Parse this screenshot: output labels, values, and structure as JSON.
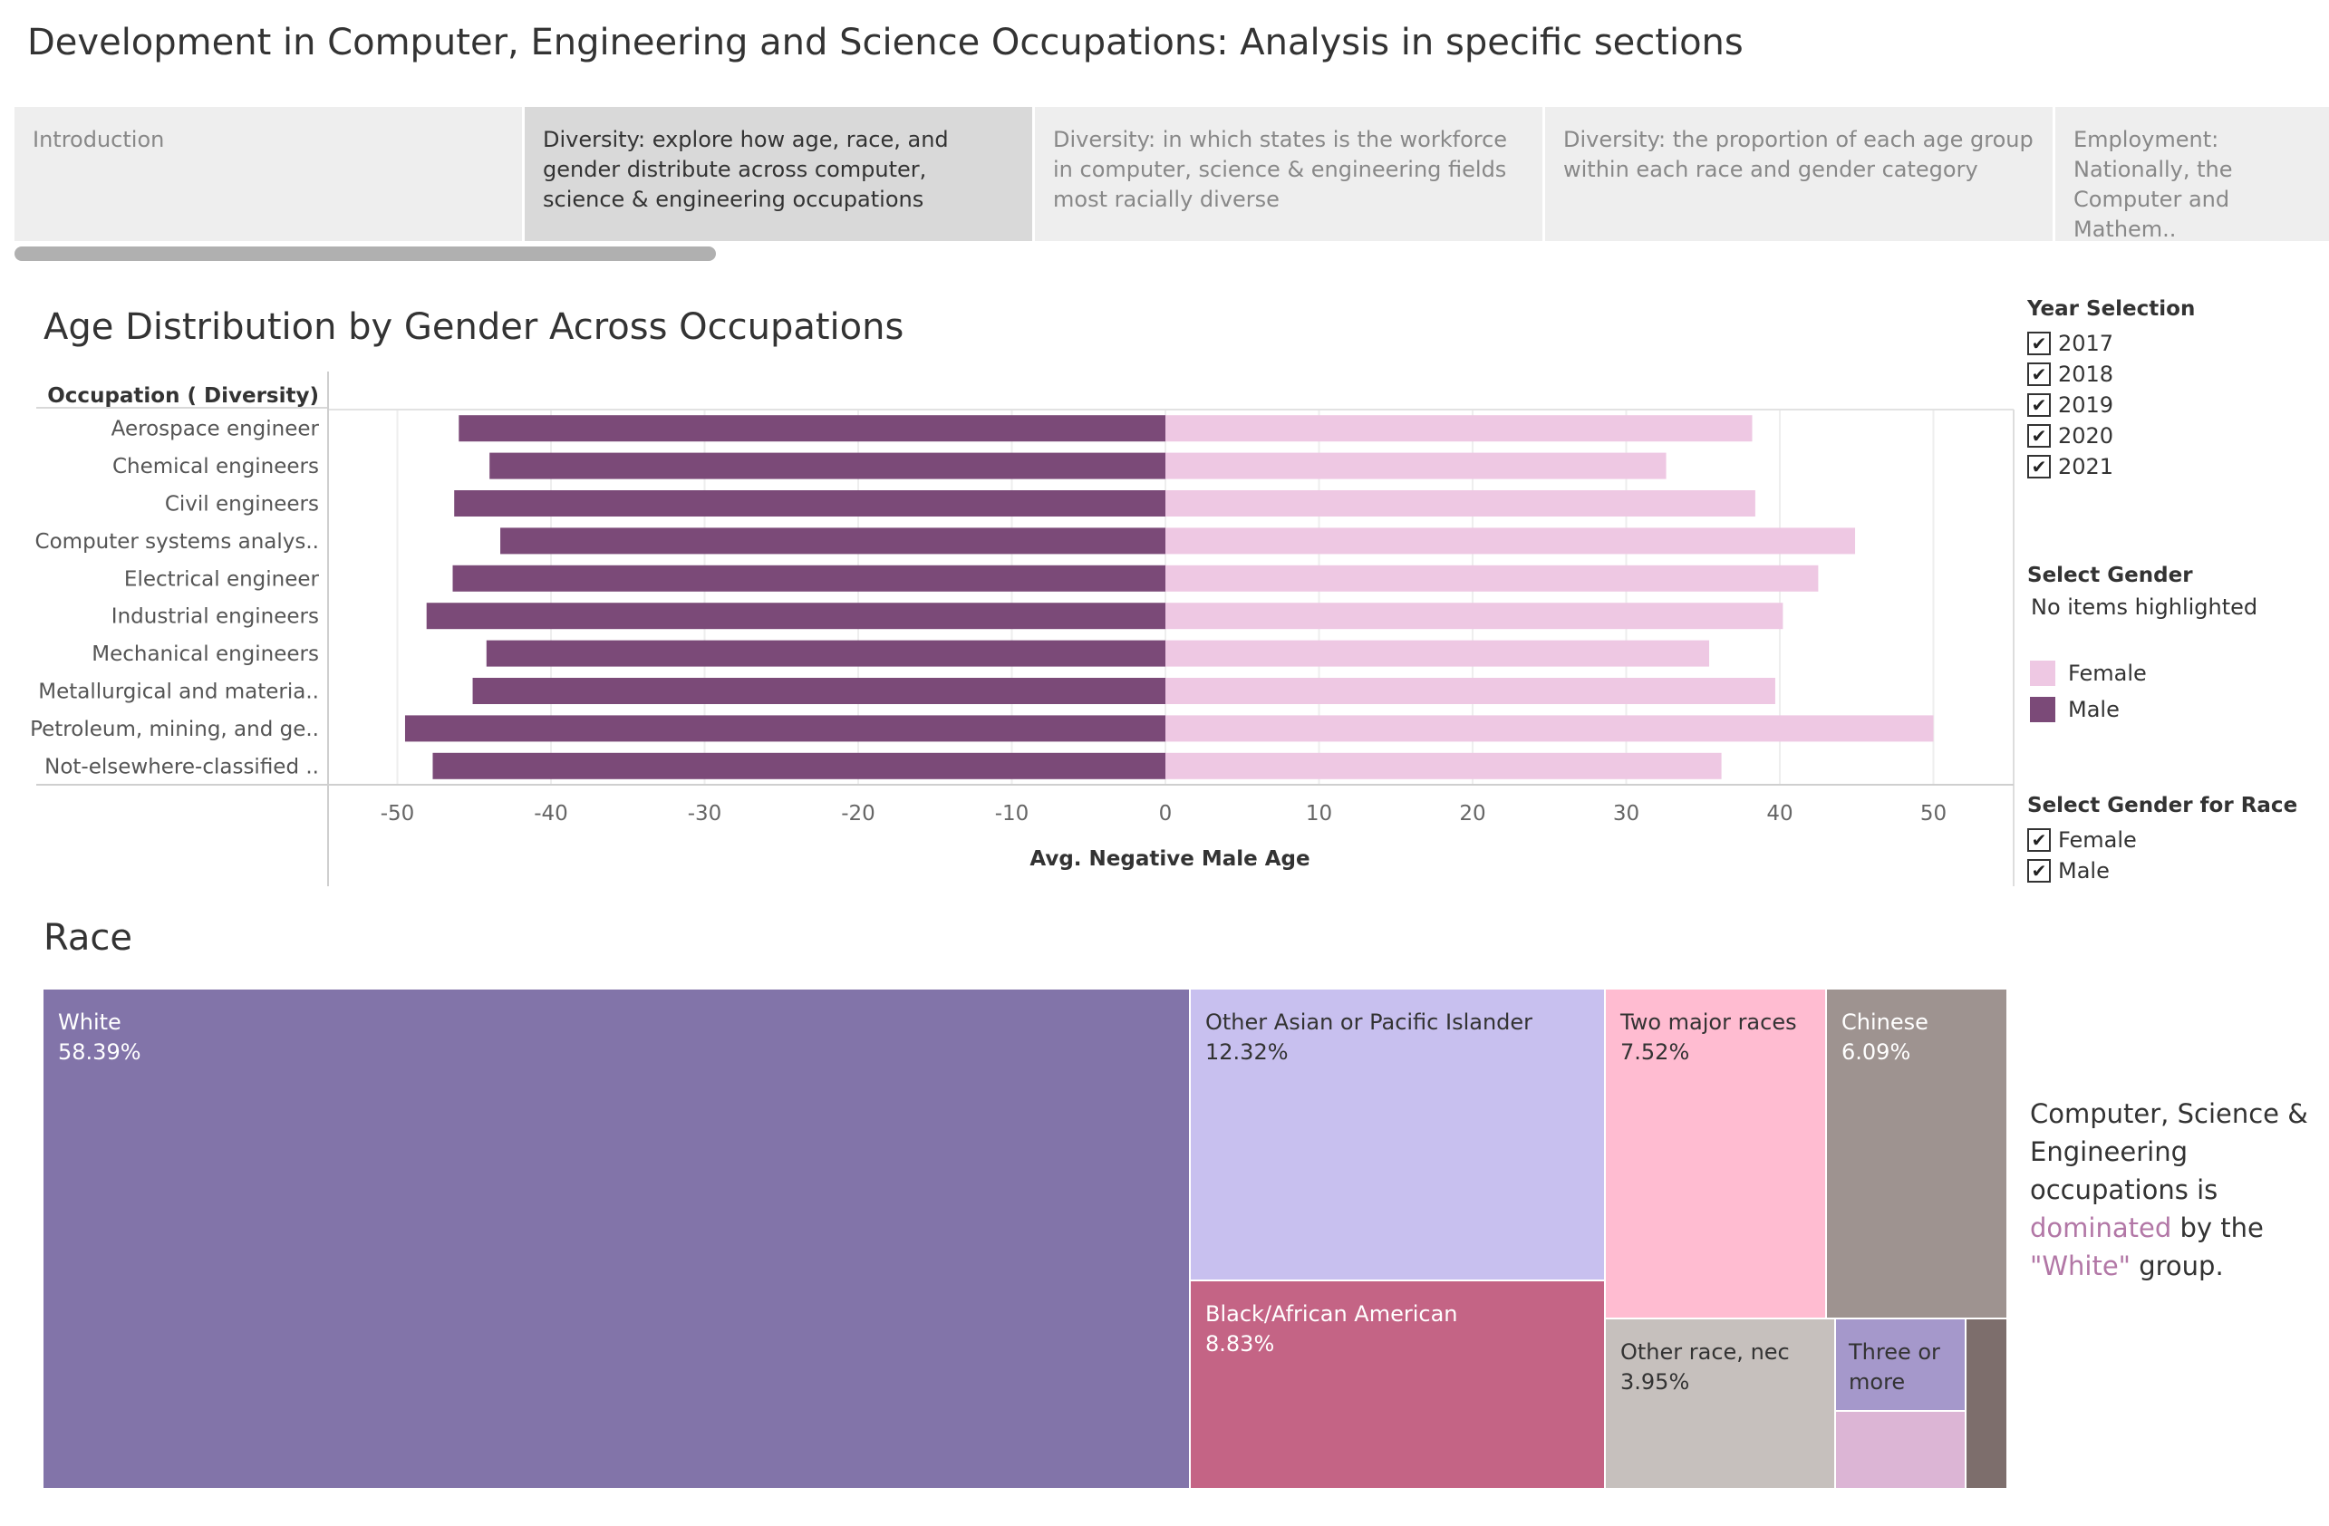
{
  "story": {
    "title": "Development in Computer, Engineering and Science Occupations: Analysis in specific sections",
    "points": [
      {
        "label": "Introduction"
      },
      {
        "label": "Diversity: explore how age, race, and gender distribute across computer, science & engineering occupations"
      },
      {
        "label": "Diversity: in which states is the workforce in computer, science & engineering fields most racially diverse"
      },
      {
        "label": "Diversity: the proportion of each age group within each race and gender category"
      },
      {
        "label": "Employment: Nationally, the Computer and Mathem.."
      }
    ]
  },
  "age_chart": {
    "title": "Age Distribution by Gender Across Occupations",
    "row_header": "Occupation ( Diversity)"
  },
  "chart_data": {
    "type": "bar",
    "orientation": "horizontal",
    "title": "Age Distribution by Gender Across Occupations",
    "xlabel": "Avg. Negative Male Age",
    "ylabel": "Occupation ( Diversity)",
    "xlim": [
      -54,
      55
    ],
    "xticks": [
      -50,
      -40,
      -30,
      -20,
      -10,
      0,
      10,
      20,
      30,
      40,
      50
    ],
    "grid": true,
    "categories": [
      "Aerospace engineer",
      "Chemical engineers",
      "Civil engineers",
      "Computer systems analys..",
      "Electrical engineer",
      "Industrial engineers",
      "Mechanical engineers",
      "Metallurgical and materia..",
      "Petroleum, mining, and ge..",
      "Not-elsewhere-classified .."
    ],
    "series": [
      {
        "name": "Male",
        "color": "#7b4a78",
        "values": [
          -46,
          -44,
          -46.3,
          -43.3,
          -46.4,
          -48.1,
          -44.2,
          -45.1,
          -49.5,
          -47.7
        ]
      },
      {
        "name": "Female",
        "color": "#eec8e3",
        "values": [
          38.2,
          32.6,
          38.4,
          44.9,
          42.5,
          40.2,
          35.4,
          39.7,
          50.0,
          36.2
        ]
      }
    ]
  },
  "filters": {
    "year": {
      "title": "Year Selection",
      "options": [
        {
          "label": "2017",
          "checked": "✔"
        },
        {
          "label": "2018",
          "checked": "✔"
        },
        {
          "label": "2019",
          "checked": "✔"
        },
        {
          "label": "2020",
          "checked": "✔"
        },
        {
          "label": "2021",
          "checked": "✔"
        }
      ]
    },
    "gender": {
      "title": "Select Gender",
      "status": "No items highlighted",
      "items": [
        {
          "label": "Female",
          "color": "#eec8e3"
        },
        {
          "label": "Male",
          "color": "#7b4a78"
        }
      ]
    },
    "gender_race": {
      "title": "Select Gender for Race",
      "options": [
        {
          "label": "Female",
          "checked": "✔"
        },
        {
          "label": "Male",
          "checked": "✔"
        }
      ]
    }
  },
  "race": {
    "title": "Race",
    "tiles": [
      {
        "label": "White",
        "value": "58.39%",
        "color": "#8274a9",
        "text_color": "#ffffff"
      },
      {
        "label": "Other Asian or Pacific Islander",
        "value": "12.32%",
        "color": "#c8c0ef",
        "text_color": "#333333"
      },
      {
        "label": "Black/African American",
        "value": "8.83%",
        "color": "#c46485",
        "text_color": "#ffffff"
      },
      {
        "label": "Two major races",
        "value": "7.52%",
        "color": "#ffbcd1",
        "text_color": "#333333"
      },
      {
        "label": "Chinese",
        "value": "6.09%",
        "color": "#9e9390",
        "text_color": "#ffffff"
      },
      {
        "label": "Other race, nec",
        "value": "3.95%",
        "color": "#c6c0bd",
        "text_color": "#333333"
      },
      {
        "label": "Three or more",
        "value": "",
        "color": "#a598cb",
        "text_color": "#333333"
      },
      {
        "label": "",
        "value": "",
        "color": "#dcb5d5",
        "text_color": "#333333"
      },
      {
        "label": "",
        "value": "",
        "color": "#7d6e6c",
        "text_color": "#ffffff"
      }
    ],
    "note": {
      "part1": "Computer, Science & Engineering occupations is",
      "highlight1": "dominated",
      "part2": "by the",
      "highlight2": "\"White\"",
      "part3": "group."
    }
  }
}
